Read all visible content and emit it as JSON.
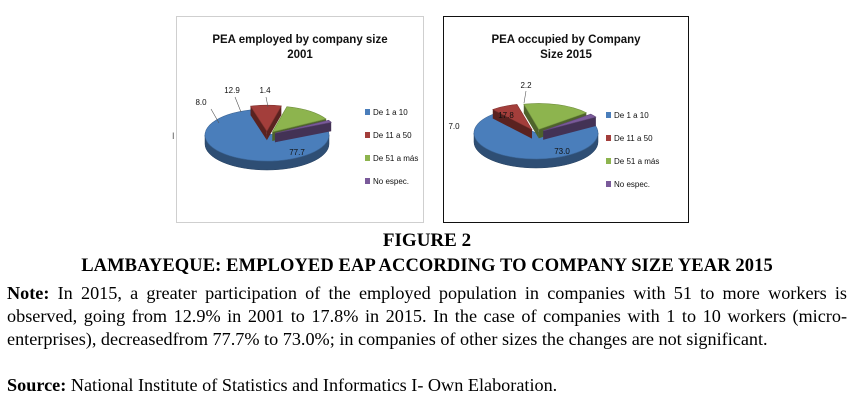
{
  "chart_data": [
    {
      "type": "pie",
      "title": "PEA employed by company size 2001",
      "title_lines": [
        "PEA employed by company size",
        "2001"
      ],
      "categories": [
        "De 1 a 10",
        "De 11 a 50",
        "De 51 a más",
        "No espec."
      ],
      "values": [
        77.7,
        8.0,
        12.9,
        1.4
      ],
      "value_labels": [
        "77.7",
        "8.0",
        "12.9",
        "1.4"
      ],
      "colors": [
        "#4a7ebb",
        "#a33e3b",
        "#8db44e",
        "#7a5a9a"
      ],
      "legend": "right",
      "style": "3d-exploded"
    },
    {
      "type": "pie",
      "title": "PEA occupied by Company Size 2015",
      "title_lines": [
        "PEA occupied by Company",
        "Size 2015"
      ],
      "categories": [
        "De 1 a 10",
        "De 11 a 50",
        "De 51 a más",
        "No espec."
      ],
      "values": [
        73.0,
        7.0,
        17.8,
        2.2
      ],
      "value_labels": [
        "73.0",
        "7.0",
        "17.8",
        "2.2"
      ],
      "colors": [
        "#4a7ebb",
        "#a33e3b",
        "#8db44e",
        "#7a5a9a"
      ],
      "legend": "right",
      "style": "3d-exploded"
    }
  ],
  "figure": {
    "label": "FIGURE 2",
    "title": "LAMBAYEQUE: EMPLOYED EAP ACCORDING TO COMPANY SIZE YEAR 2015"
  },
  "note": {
    "label": "Note:",
    "text": " In 2015, a greater participation of the employed population in companies with 51 to more workers is observed, going from 12.9% in 2001 to 17.8% in 2015. In the case of companies with 1 to 10 workers (micro-enterprises), decreasedfrom 77.7% to 73.0%; in companies of other sizes the changes are not significant."
  },
  "source": {
    "label": "Source:",
    "text": " National Institute of Statistics and Informatics I- Own Elaboration."
  },
  "stray_mark": "I"
}
